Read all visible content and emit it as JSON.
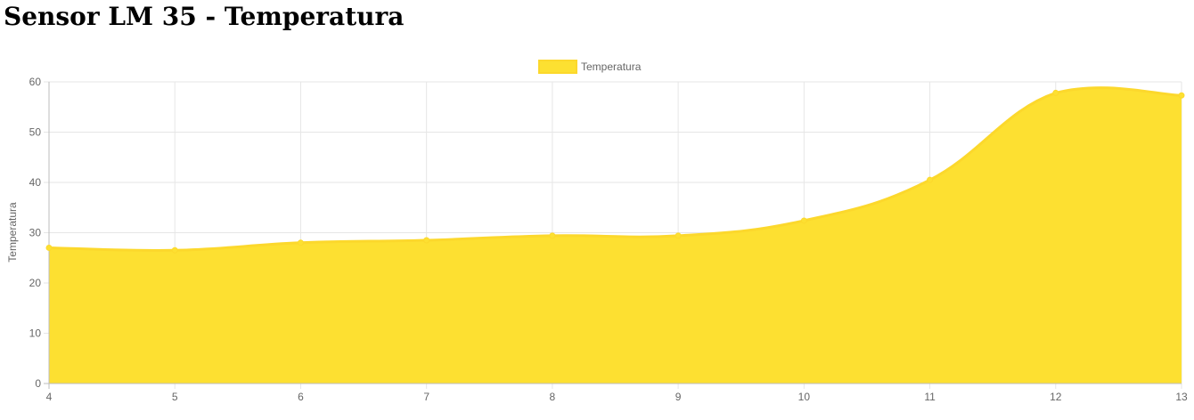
{
  "page": {
    "title": "Sensor LM 35 - Temperatura"
  },
  "chart_data": {
    "type": "area",
    "x": [
      4,
      5,
      6,
      7,
      8,
      9,
      10,
      11,
      12,
      13
    ],
    "series": [
      {
        "name": "Temperatura",
        "values": [
          27.0,
          26.5,
          28.0,
          28.5,
          29.4,
          29.4,
          32.4,
          40.5,
          57.8,
          57.3
        ],
        "color": "#fde031",
        "border_color": "#fcd82c"
      }
    ],
    "ylabel": "Temperatura",
    "xlabel": "",
    "ylim": [
      0,
      60
    ],
    "yticks": [
      0,
      10,
      20,
      30,
      40,
      50,
      60
    ],
    "grid": true,
    "legend_position": "top-center"
  }
}
